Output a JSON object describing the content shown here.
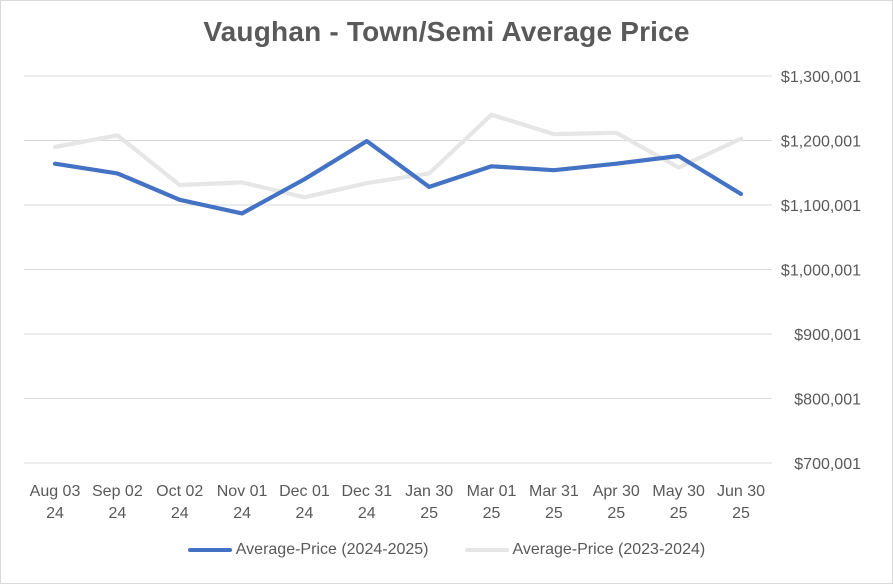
{
  "chart_data": {
    "type": "line",
    "title": "Vaughan - Town/Semi Average Price",
    "categories": [
      [
        "Aug 03",
        "24"
      ],
      [
        "Sep 02",
        "24"
      ],
      [
        "Oct 02",
        "24"
      ],
      [
        "Nov 01",
        "24"
      ],
      [
        "Dec 01",
        "24"
      ],
      [
        "Dec 31",
        "24"
      ],
      [
        "Jan 30",
        "25"
      ],
      [
        "Mar 01",
        "25"
      ],
      [
        "Mar 31",
        "25"
      ],
      [
        "Apr 30",
        "25"
      ],
      [
        "May 30",
        "25"
      ],
      [
        "Jun 30",
        "25"
      ]
    ],
    "y_ticks": [
      700001,
      800001,
      900001,
      1000001,
      1100001,
      1200001,
      1300001
    ],
    "y_tick_labels": [
      "$700,001",
      "$800,001",
      "$900,001",
      "$1,000,001",
      "$1,100,001",
      "$1,200,001",
      "$1,300,001"
    ],
    "ylim": [
      700001,
      1300001
    ],
    "y_axis_side": "right",
    "grid": true,
    "legend_position": "bottom",
    "series": [
      {
        "name": "Average-Price (2024-2025)",
        "color": "#4472c4",
        "values": [
          1164000,
          1149000,
          1108000,
          1087000,
          1140000,
          1199000,
          1128000,
          1160000,
          1154000,
          1164000,
          1176000,
          1117000
        ]
      },
      {
        "name": "Average-Price (2023-2024)",
        "color": "#e7e6e6",
        "values": [
          1190000,
          1208000,
          1131000,
          1135000,
          1112000,
          1134000,
          1149000,
          1240000,
          1210000,
          1212000,
          1158000,
          1203000
        ]
      }
    ]
  }
}
